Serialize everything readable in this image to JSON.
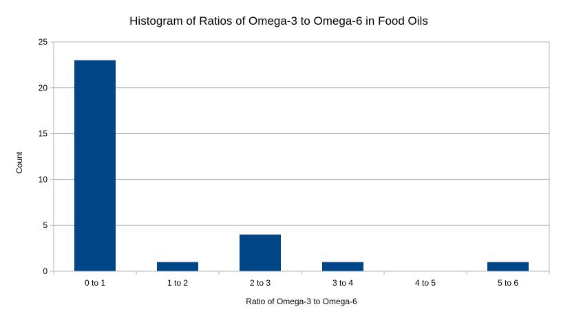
{
  "chart_data": {
    "type": "bar",
    "title": "Histogram of Ratios of Omega-3 to Omega-6 in Food Oils",
    "xlabel": "Ratio of Omega-3 to Omega-6",
    "ylabel": "Count",
    "categories": [
      "0 to 1",
      "1 to 2",
      "2 to 3",
      "3 to 4",
      "4 to 5",
      "5 to 6"
    ],
    "values": [
      23,
      1,
      4,
      1,
      0,
      1
    ],
    "ylim": [
      0,
      25
    ],
    "yticks": [
      0,
      5,
      10,
      15,
      20,
      25
    ],
    "grid": "horizontal",
    "legend": "none",
    "bar_color": "#004586",
    "grid_color": "#b3b3b3",
    "axis_color": "#b3b3b3"
  }
}
